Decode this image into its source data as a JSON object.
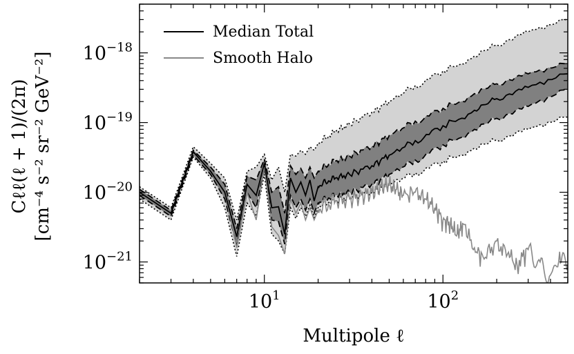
{
  "chart_data": {
    "type": "line",
    "title": "",
    "xlabel": "Multipole ℓ",
    "ylabel_line1": "Cℓℓ(ℓ + 1)/(2π)",
    "ylabel_line2": "[cm⁻⁴ s⁻² sr⁻² GeV⁻²]",
    "xscale": "log",
    "yscale": "log",
    "xlim": [
      2,
      500
    ],
    "ylim": [
      5e-22,
      5e-18
    ],
    "x_ticks": [
      {
        "value": 10,
        "base": "10",
        "exp": "1"
      },
      {
        "value": 100,
        "base": "10",
        "exp": "2"
      }
    ],
    "y_ticks": [
      {
        "value": 1e-21,
        "base": "10",
        "exp": "−21"
      },
      {
        "value": 1e-20,
        "base": "10",
        "exp": "−20"
      },
      {
        "value": 1e-19,
        "base": "10",
        "exp": "−19"
      },
      {
        "value": 1e-18,
        "base": "10",
        "exp": "−18"
      }
    ],
    "legend": {
      "position": "top-left",
      "entries": [
        {
          "label": "Median Total",
          "color": "#000000"
        },
        {
          "label": "Smooth Halo",
          "color": "#888888"
        }
      ]
    },
    "colors": {
      "outer_band": "#d3d3d3",
      "inner_band": "#808080",
      "median": "#000000",
      "smooth": "#888888"
    },
    "series": [
      {
        "name": "Median Total",
        "x": [
          2,
          3,
          4,
          5,
          6,
          7,
          8,
          9,
          10,
          11,
          12,
          13,
          14,
          15,
          16,
          17,
          18,
          19,
          20,
          22,
          25,
          30,
          40,
          50,
          70,
          100,
          150,
          200,
          300,
          500
        ],
        "y": [
          1e-20,
          5e-21,
          3.8e-20,
          2e-20,
          1e-20,
          2.3e-21,
          1.3e-20,
          9e-21,
          2.6e-20,
          6e-21,
          6.2e-21,
          2.5e-21,
          1.6e-20,
          1e-20,
          1.4e-20,
          9e-21,
          1.5e-20,
          7.5e-21,
          1.2e-20,
          1.4e-20,
          1.6e-20,
          1.8e-20,
          2.4e-20,
          3.4e-20,
          5.5e-20,
          9e-20,
          1.5e-19,
          2.2e-19,
          3.2e-19,
          5e-19
        ]
      },
      {
        "name": "Inner band upper",
        "x": [
          2,
          3,
          4,
          5,
          6,
          7,
          8,
          9,
          10,
          11,
          12,
          13,
          14,
          15,
          16,
          17,
          18,
          19,
          20,
          22,
          25,
          30,
          40,
          50,
          70,
          100,
          150,
          200,
          300,
          500
        ],
        "y": [
          1.1e-20,
          5.5e-21,
          4e-20,
          2.3e-20,
          1.3e-20,
          3e-21,
          1.7e-20,
          1.5e-20,
          3e-20,
          1e-20,
          1.2e-20,
          5e-21,
          2.4e-20,
          1.8e-20,
          2.2e-20,
          1.6e-20,
          2.3e-20,
          1.6e-20,
          2e-20,
          2.4e-20,
          2.8e-20,
          3.3e-20,
          4.6e-20,
          6.5e-20,
          1.05e-19,
          1.6e-19,
          2.6e-19,
          3.6e-19,
          5e-19,
          7e-19
        ]
      },
      {
        "name": "Inner band lower",
        "x": [
          2,
          3,
          4,
          5,
          6,
          7,
          8,
          9,
          10,
          11,
          12,
          13,
          14,
          15,
          16,
          17,
          18,
          19,
          20,
          22,
          25,
          30,
          40,
          50,
          70,
          100,
          150,
          200,
          300,
          500
        ],
        "y": [
          9e-21,
          4.5e-21,
          3.4e-20,
          1.8e-20,
          8e-21,
          1.7e-21,
          1e-20,
          6e-21,
          2.2e-20,
          4e-21,
          3.8e-21,
          1.8e-21,
          9e-21,
          6e-21,
          8e-21,
          5.5e-21,
          8e-21,
          5e-21,
          7e-21,
          8e-21,
          9e-21,
          1e-20,
          1.3e-20,
          1.8e-20,
          2.9e-20,
          4.8e-20,
          8e-20,
          1.15e-19,
          1.7e-19,
          3e-19
        ]
      },
      {
        "name": "Outer band upper",
        "x": [
          2,
          3,
          4,
          5,
          6,
          7,
          8,
          9,
          10,
          11,
          12,
          13,
          14,
          15,
          16,
          17,
          18,
          19,
          20,
          22,
          25,
          30,
          40,
          50,
          70,
          100,
          150,
          200,
          300,
          500
        ],
        "y": [
          1.2e-20,
          6e-21,
          4.5e-20,
          2.6e-20,
          1.6e-20,
          4e-21,
          2e-20,
          2.3e-20,
          3.5e-20,
          1.5e-20,
          2.3e-20,
          1e-20,
          3.5e-20,
          3.3e-20,
          4e-20,
          3.5e-20,
          4.5e-20,
          4e-20,
          5e-20,
          6e-20,
          7.5e-20,
          9.5e-20,
          1.4e-19,
          2e-19,
          3.4e-19,
          5.5e-19,
          9e-19,
          1.3e-18,
          2e-18,
          3e-18
        ]
      },
      {
        "name": "Outer band lower",
        "x": [
          2,
          3,
          4,
          5,
          6,
          7,
          8,
          9,
          10,
          11,
          12,
          13,
          14,
          15,
          16,
          17,
          18,
          19,
          20,
          22,
          25,
          30,
          40,
          50,
          70,
          100,
          150,
          200,
          300,
          500
        ],
        "y": [
          8e-21,
          4e-21,
          3.2e-20,
          1.6e-20,
          6e-21,
          1.2e-21,
          7e-21,
          4.5e-21,
          1.8e-20,
          2.5e-21,
          2e-21,
          1.3e-21,
          6e-21,
          4.2e-21,
          6e-21,
          4.5e-21,
          6.5e-21,
          4.3e-21,
          6e-21,
          7e-21,
          7.5e-21,
          8.5e-21,
          1e-20,
          1.3e-20,
          1.9e-20,
          2.8e-20,
          4.3e-20,
          5.6e-20,
          8e-20,
          1.2e-19
        ]
      },
      {
        "name": "Smooth Halo",
        "x": [
          2,
          3,
          4,
          5,
          6,
          7,
          8,
          9,
          10,
          11,
          12,
          13,
          14,
          15,
          16,
          17,
          18,
          19,
          20,
          22,
          25,
          30,
          35,
          40,
          45,
          50,
          55,
          60,
          70,
          80,
          90,
          100,
          110,
          120,
          130,
          150,
          170,
          200,
          230,
          260,
          300,
          350,
          400,
          450,
          500
        ],
        "y": [
          1e-20,
          5e-21,
          3.8e-20,
          2e-20,
          1e-20,
          1.6e-21,
          1e-20,
          4e-21,
          2.4e-20,
          3.2e-21,
          2.4e-21,
          1.3e-21,
          8e-21,
          5e-21,
          7e-21,
          4e-21,
          6e-21,
          4e-21,
          5.5e-21,
          6.5e-21,
          7.5e-21,
          8e-21,
          9e-21,
          1e-20,
          1.2e-20,
          1.3e-20,
          1.1e-20,
          9e-21,
          1e-20,
          8e-21,
          6e-21,
          4e-21,
          3.5e-21,
          2.5e-21,
          3.5e-21,
          1.6e-21,
          1.1e-21,
          2e-21,
          1.3e-21,
          9e-22,
          1.5e-21,
          1e-21,
          6.5e-22,
          1.4e-21,
          9e-22
        ]
      }
    ]
  }
}
